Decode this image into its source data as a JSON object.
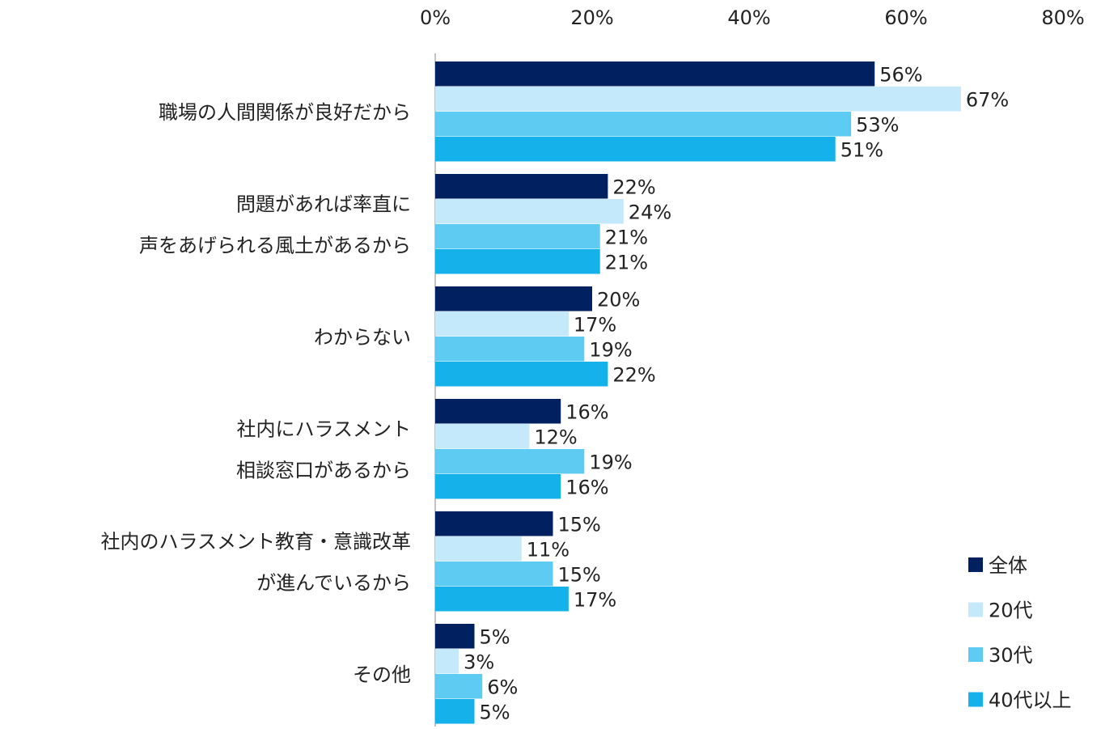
{
  "chart_data": {
    "type": "bar",
    "orientation": "horizontal",
    "categories": [
      [
        "職場の人間関係が良好だから"
      ],
      [
        "問題があれば率直に",
        "声をあげられる風土があるから"
      ],
      [
        "わからない"
      ],
      [
        "社内にハラスメント",
        "相談窓口があるから"
      ],
      [
        "社内のハラスメント教育・意識改革",
        "が進んでいるから"
      ],
      [
        "その他"
      ]
    ],
    "series": [
      {
        "name": "全体",
        "color": "#002060",
        "values": [
          56,
          22,
          20,
          16,
          15,
          5
        ]
      },
      {
        "name": "20代",
        "color": "#C3E9FA",
        "values": [
          67,
          24,
          17,
          12,
          11,
          3
        ]
      },
      {
        "name": "30代",
        "color": "#5ECBF3",
        "values": [
          53,
          21,
          19,
          19,
          15,
          6
        ]
      },
      {
        "name": "40代以上",
        "color": "#14B1EA",
        "values": [
          51,
          21,
          22,
          16,
          17,
          5
        ]
      }
    ],
    "xlim": [
      0,
      80
    ],
    "xticks": [
      "0%",
      "20%",
      "40%",
      "60%",
      "80%"
    ],
    "value_suffix": "%",
    "axis_position": "top",
    "grid": false,
    "legend_position": "bottom-right"
  }
}
